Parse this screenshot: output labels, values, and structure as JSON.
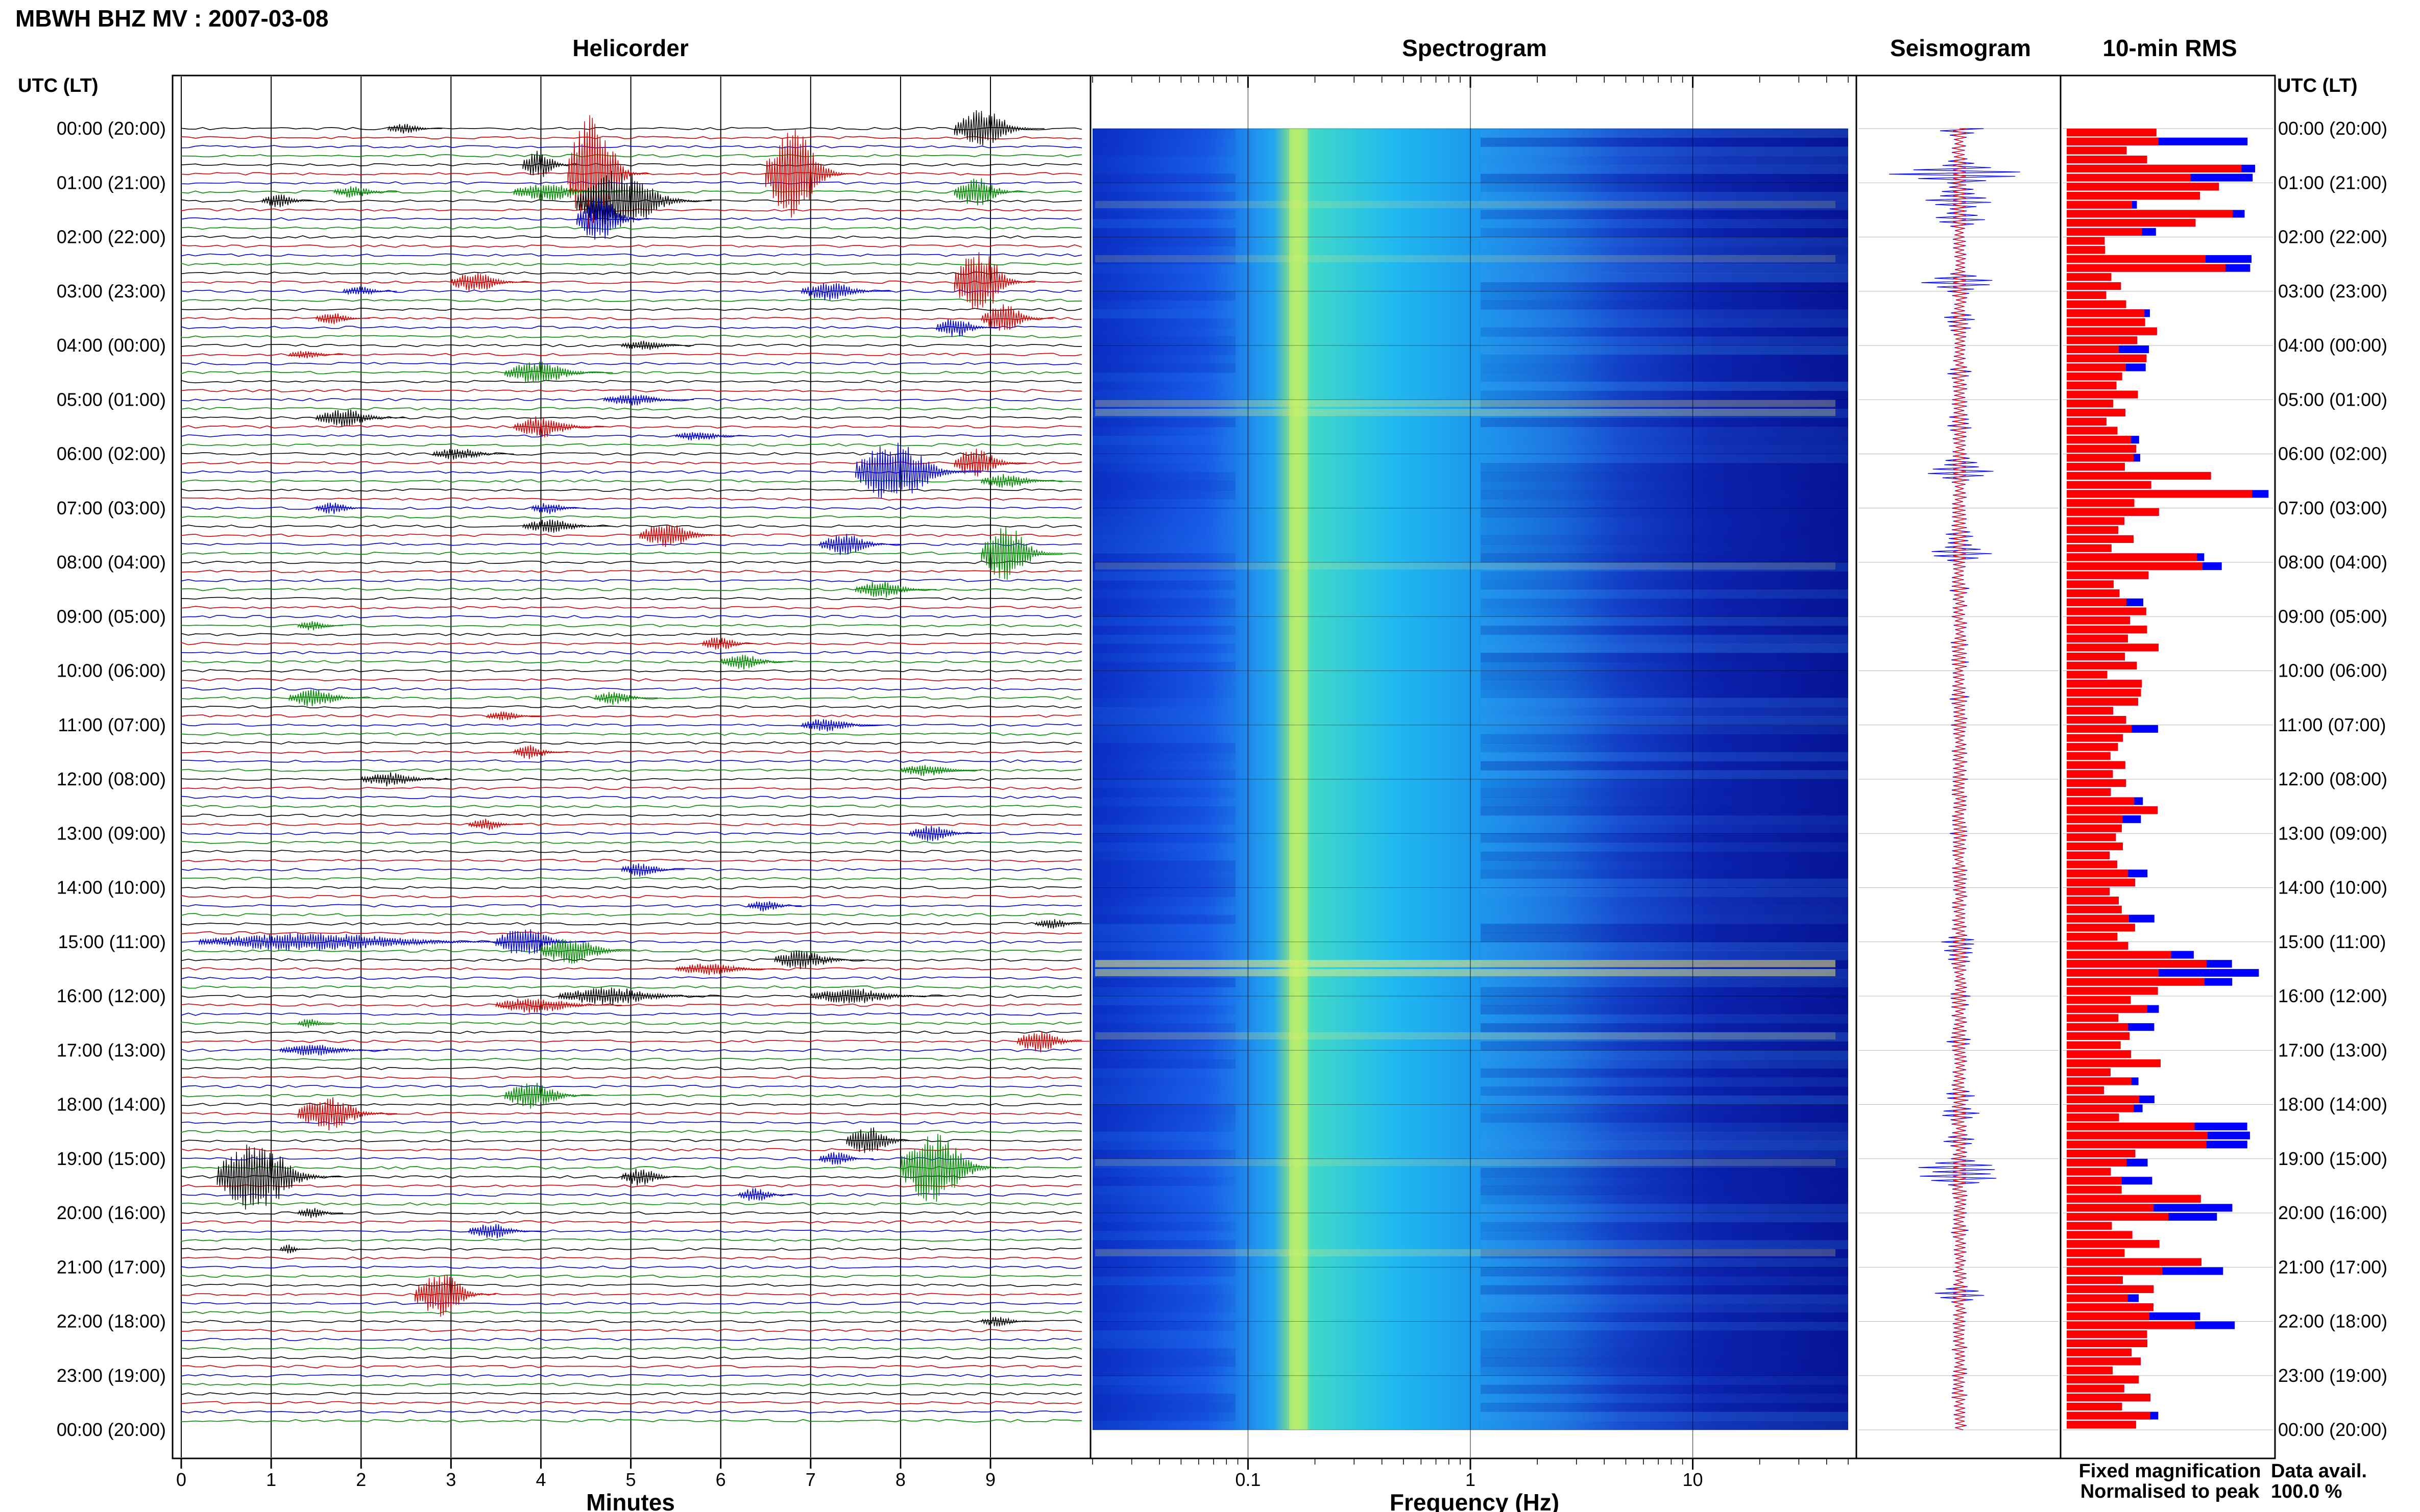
{
  "header": {
    "station_title": "MBWH BHZ MV : 2007-03-08"
  },
  "panels": {
    "helicorder": "Helicorder",
    "spectrogram": "Spectrogram",
    "seismogram": "Seismogram",
    "rms": "10-min RMS"
  },
  "axis": {
    "time_header": "UTC (LT)",
    "xlabel_helicorder": "Minutes",
    "xlabel_spectrogram": "Frequency (Hz)"
  },
  "legend": {
    "fixed": "Fixed magnification",
    "normalised": "Normalised to peak",
    "fixed_color": "#0000ff",
    "normalised_color": "#ff0000"
  },
  "availability": {
    "label": "Data avail.",
    "value": "100.0 %"
  },
  "colors": {
    "trace_cycle": [
      "#000000",
      "#cc0000",
      "#0000cc",
      "#008800"
    ]
  },
  "chart_data": [
    {
      "type": "helicorder",
      "title": "Helicorder",
      "xlabel": "Minutes",
      "x_ticks": [
        "0",
        "1",
        "2",
        "3",
        "4",
        "5",
        "6",
        "7",
        "8",
        "9"
      ],
      "xlim": [
        0,
        10
      ],
      "time_labels": [
        "00:00 (20:00)",
        "01:00 (21:00)",
        "02:00 (22:00)",
        "03:00 (23:00)",
        "04:00 (00:00)",
        "05:00 (01:00)",
        "06:00 (02:00)",
        "07:00 (03:00)",
        "08:00 (04:00)",
        "09:00 (05:00)",
        "10:00 (06:00)",
        "11:00 (07:00)",
        "12:00 (08:00)",
        "13:00 (09:00)",
        "14:00 (10:00)",
        "15:00 (11:00)",
        "16:00 (12:00)",
        "17:00 (13:00)",
        "18:00 (14:00)",
        "19:00 (15:00)",
        "20:00 (16:00)",
        "21:00 (17:00)",
        "22:00 (18:00)",
        "23:00 (19:00)",
        "00:00 (20:00)"
      ],
      "lines_per_hour": 6,
      "trace_colors": [
        "black",
        "red",
        "blue",
        "green"
      ]
    },
    {
      "type": "heatmap",
      "title": "Spectrogram",
      "xlabel": "Frequency (Hz)",
      "x_scale": "log",
      "x_ticks": [
        "0.1",
        "1",
        "10"
      ],
      "xlim": [
        0.02,
        50
      ],
      "rows": 144
    },
    {
      "type": "line",
      "title": "Seismogram",
      "series": [
        {
          "name": "Fixed magnification",
          "color": "blue"
        },
        {
          "name": "Normalised to peak",
          "color": "red"
        }
      ]
    },
    {
      "type": "bar",
      "title": "10-min RMS",
      "orientation": "horizontal",
      "rows": 144,
      "series": [
        {
          "name": "Fixed magnification",
          "color": "blue"
        },
        {
          "name": "Normalised to peak",
          "color": "red"
        }
      ]
    }
  ]
}
